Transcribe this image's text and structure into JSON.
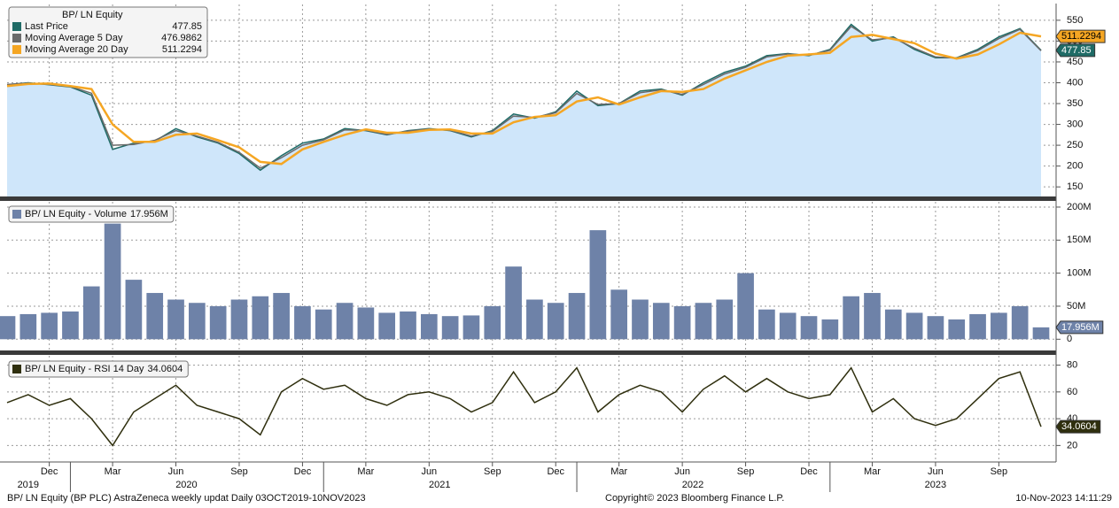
{
  "chart_data": [
    {
      "type": "line",
      "legend_title": "BP/ LN Equity",
      "x": [
        "2019-10",
        "2019-11",
        "2019-12",
        "2020-01",
        "2020-02",
        "2020-03",
        "2020-04",
        "2020-05",
        "2020-06",
        "2020-07",
        "2020-08",
        "2020-09",
        "2020-10",
        "2020-11",
        "2020-12",
        "2021-01",
        "2021-02",
        "2021-03",
        "2021-04",
        "2021-05",
        "2021-06",
        "2021-07",
        "2021-08",
        "2021-09",
        "2021-10",
        "2021-11",
        "2021-12",
        "2022-01",
        "2022-02",
        "2022-03",
        "2022-04",
        "2022-05",
        "2022-06",
        "2022-07",
        "2022-08",
        "2022-09",
        "2022-10",
        "2022-11",
        "2022-12",
        "2023-01",
        "2023-02",
        "2023-03",
        "2023-04",
        "2023-05",
        "2023-06",
        "2023-07",
        "2023-08",
        "2023-09",
        "2023-10",
        "2023-11"
      ],
      "xlim": [
        "2019-10",
        "2023-11"
      ],
      "series": [
        {
          "name": "Last Price",
          "color": "#1f6b66",
          "values": [
            395,
            400,
            395,
            390,
            370,
            240,
            255,
            260,
            290,
            270,
            255,
            230,
            190,
            225,
            255,
            265,
            290,
            285,
            275,
            285,
            290,
            285,
            270,
            285,
            325,
            315,
            330,
            380,
            345,
            350,
            380,
            385,
            370,
            400,
            425,
            440,
            465,
            470,
            465,
            480,
            540,
            500,
            510,
            480,
            460,
            460,
            480,
            510,
            530,
            477.85
          ]
        },
        {
          "name": "Moving Average 5 Day",
          "color": "#6b6b6b",
          "values": [
            396,
            399,
            396,
            391,
            375,
            250,
            252,
            262,
            285,
            272,
            257,
            233,
            195,
            220,
            250,
            263,
            287,
            286,
            276,
            284,
            289,
            286,
            272,
            283,
            320,
            317,
            328,
            374,
            348,
            350,
            376,
            383,
            372,
            396,
            421,
            437,
            462,
            469,
            466,
            478,
            535,
            503,
            508,
            483,
            462,
            459,
            477,
            506,
            528,
            476.9862
          ]
        },
        {
          "name": "Moving Average 20 Day",
          "color": "#f5a623",
          "values": [
            392,
            397,
            398,
            392,
            385,
            300,
            258,
            258,
            275,
            278,
            262,
            245,
            210,
            205,
            240,
            258,
            275,
            288,
            280,
            280,
            287,
            288,
            278,
            278,
            305,
            318,
            322,
            355,
            365,
            348,
            365,
            380,
            378,
            385,
            410,
            430,
            450,
            465,
            468,
            472,
            510,
            515,
            505,
            495,
            470,
            458,
            468,
            492,
            520,
            511.2294
          ]
        }
      ],
      "area_color": "#cfe6fa",
      "ylim": [
        127,
        588
      ],
      "yticks": [
        150,
        200,
        250,
        300,
        350,
        400,
        450,
        500,
        550
      ],
      "grid": true
    },
    {
      "type": "bar",
      "x": [
        "2019-10",
        "2019-11",
        "2019-12",
        "2020-01",
        "2020-02",
        "2020-03",
        "2020-04",
        "2020-05",
        "2020-06",
        "2020-07",
        "2020-08",
        "2020-09",
        "2020-10",
        "2020-11",
        "2020-12",
        "2021-01",
        "2021-02",
        "2021-03",
        "2021-04",
        "2021-05",
        "2021-06",
        "2021-07",
        "2021-08",
        "2021-09",
        "2021-10",
        "2021-11",
        "2021-12",
        "2022-01",
        "2022-02",
        "2022-03",
        "2022-04",
        "2022-05",
        "2022-06",
        "2022-07",
        "2022-08",
        "2022-09",
        "2022-10",
        "2022-11",
        "2022-12",
        "2023-01",
        "2023-02",
        "2023-03",
        "2023-04",
        "2023-05",
        "2023-06",
        "2023-07",
        "2023-08",
        "2023-09",
        "2023-10",
        "2023-11"
      ],
      "xlim": [
        "2019-10",
        "2023-11"
      ],
      "series": [
        {
          "name": "BP/ LN Equity - Volume",
          "color": "#6e82a8",
          "values": [
            35000000,
            38000000,
            40000000,
            42000000,
            80000000,
            175000000,
            90000000,
            70000000,
            60000000,
            55000000,
            50000000,
            60000000,
            65000000,
            70000000,
            50000000,
            45000000,
            55000000,
            48000000,
            40000000,
            42000000,
            38000000,
            35000000,
            36000000,
            50000000,
            110000000,
            60000000,
            55000000,
            70000000,
            165000000,
            75000000,
            60000000,
            55000000,
            50000000,
            55000000,
            60000000,
            100000000,
            45000000,
            40000000,
            35000000,
            30000000,
            65000000,
            70000000,
            45000000,
            40000000,
            35000000,
            30000000,
            38000000,
            40000000,
            50000000,
            17956000
          ],
          "value_labels": [
            null,
            null,
            null,
            null,
            null,
            null,
            null,
            null,
            null,
            null,
            null,
            null,
            null,
            null,
            null,
            null,
            null,
            null,
            null,
            null,
            null,
            null,
            null,
            null,
            null,
            null,
            null,
            null,
            null,
            null,
            null,
            null,
            null,
            null,
            null,
            null,
            null,
            null,
            null,
            null,
            null,
            null,
            null,
            null,
            null,
            null,
            null,
            null,
            null,
            "17.956M"
          ]
        }
      ],
      "ylim": [
        -17000000,
        208000000
      ],
      "yticks": [
        0,
        {
          "value": 50000000,
          "label": "50M"
        },
        {
          "value": 100000000,
          "label": "100M"
        },
        {
          "value": 150000000,
          "label": "150M"
        },
        {
          "value": 200000000,
          "label": "200M"
        }
      ],
      "grid": true
    },
    {
      "type": "line",
      "x": [
        "2019-10",
        "2019-11",
        "2019-12",
        "2020-01",
        "2020-02",
        "2020-03",
        "2020-04",
        "2020-05",
        "2020-06",
        "2020-07",
        "2020-08",
        "2020-09",
        "2020-10",
        "2020-11",
        "2020-12",
        "2021-01",
        "2021-02",
        "2021-03",
        "2021-04",
        "2021-05",
        "2021-06",
        "2021-07",
        "2021-08",
        "2021-09",
        "2021-10",
        "2021-11",
        "2021-12",
        "2022-01",
        "2022-02",
        "2022-03",
        "2022-04",
        "2022-05",
        "2022-06",
        "2022-07",
        "2022-08",
        "2022-09",
        "2022-10",
        "2022-11",
        "2022-12",
        "2023-01",
        "2023-02",
        "2023-03",
        "2023-04",
        "2023-05",
        "2023-06",
        "2023-07",
        "2023-08",
        "2023-09",
        "2023-10",
        "2023-11"
      ],
      "xlim": [
        "2019-10",
        "2023-11"
      ],
      "series": [
        {
          "name": "BP/ LN Equity - RSI 14 Day",
          "color": "#2f2f0e",
          "values": [
            52,
            58,
            50,
            55,
            40,
            20,
            45,
            55,
            65,
            50,
            45,
            40,
            28,
            60,
            70,
            62,
            65,
            55,
            50,
            58,
            60,
            55,
            45,
            52,
            75,
            52,
            60,
            78,
            45,
            58,
            65,
            60,
            45,
            62,
            72,
            60,
            70,
            60,
            55,
            58,
            78,
            45,
            55,
            40,
            35,
            40,
            55,
            70,
            75,
            34.0604
          ]
        }
      ],
      "ylim": [
        9,
        87
      ],
      "yticks": [
        20,
        40,
        60,
        80
      ],
      "grid": true,
      "xticks": [
        {
          "value": "2019-12",
          "label": "Dec"
        },
        {
          "value": "2020-03",
          "label": "Mar"
        },
        {
          "value": "2020-06",
          "label": "Jun"
        },
        {
          "value": "2020-09",
          "label": "Sep"
        },
        {
          "value": "2020-12",
          "label": "Dec"
        },
        {
          "value": "2021-03",
          "label": "Mar"
        },
        {
          "value": "2021-06",
          "label": "Jun"
        },
        {
          "value": "2021-09",
          "label": "Sep"
        },
        {
          "value": "2021-12",
          "label": "Dec"
        },
        {
          "value": "2022-03",
          "label": "Mar"
        },
        {
          "value": "2022-06",
          "label": "Jun"
        },
        {
          "value": "2022-09",
          "label": "Sep"
        },
        {
          "value": "2022-12",
          "label": "Dec"
        },
        {
          "value": "2023-03",
          "label": "Mar"
        },
        {
          "value": "2023-06",
          "label": "Jun"
        },
        {
          "value": "2023-09",
          "label": "Sep"
        }
      ],
      "years": [
        "2019",
        "2020",
        "2021",
        "2022",
        "2023"
      ]
    }
  ],
  "footer": {
    "left": "BP/ LN Equity (BP PLC) AstraZeneca weekly updat  Daily 03OCT2019-10NOV2023",
    "center": "Copyright© 2023 Bloomberg Finance L.P.",
    "right": "10-Nov-2023 14:11:29"
  }
}
